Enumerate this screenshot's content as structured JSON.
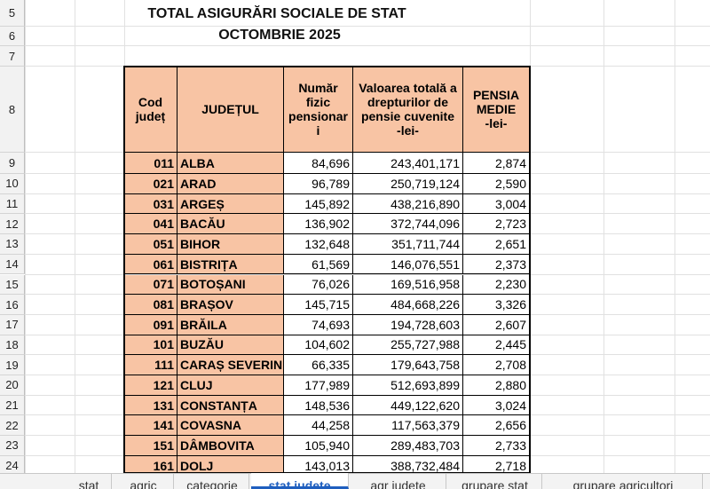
{
  "title": [
    "TOTAL ASIGURĂRI SOCIALE DE STAT",
    "OCTOMBRIE 2025"
  ],
  "row_numbers": [
    5,
    6,
    7,
    8,
    9,
    10,
    11,
    12,
    13,
    14,
    15,
    16,
    17,
    18,
    19,
    20,
    21,
    22,
    23,
    24
  ],
  "table": {
    "header": [
      [
        "Cod",
        "județ"
      ],
      [
        "JUDEȚUL"
      ],
      [
        "Număr",
        "fizic",
        "pensionar",
        "i"
      ],
      [
        "Valoarea totală a",
        "drepturilor de",
        "pensie cuvenite",
        "-lei-"
      ],
      [
        "PENSIA",
        "MEDIE",
        "-lei-"
      ]
    ],
    "rows": [
      [
        "011",
        "ALBA",
        "84,696",
        "243,401,171",
        "2,874"
      ],
      [
        "021",
        "ARAD",
        "96,789",
        "250,719,124",
        "2,590"
      ],
      [
        "031",
        "ARGEȘ",
        "145,892",
        "438,216,890",
        "3,004"
      ],
      [
        "041",
        "BACĂU",
        "136,902",
        "372,744,096",
        "2,723"
      ],
      [
        "051",
        "BIHOR",
        "132,648",
        "351,711,744",
        "2,651"
      ],
      [
        "061",
        "BISTRIȚA",
        "61,569",
        "146,076,551",
        "2,373"
      ],
      [
        "071",
        "BOTOȘANI",
        "76,026",
        "169,516,958",
        "2,230"
      ],
      [
        "081",
        "BRAȘOV",
        "145,715",
        "484,668,226",
        "3,326"
      ],
      [
        "091",
        "BRĂILA",
        "74,693",
        "194,728,603",
        "2,607"
      ],
      [
        "101",
        "BUZĂU",
        "104,602",
        "255,727,988",
        "2,445"
      ],
      [
        "111",
        "CARAȘ SEVERIN",
        "66,335",
        "179,643,758",
        "2,708"
      ],
      [
        "121",
        "CLUJ",
        "177,989",
        "512,693,899",
        "2,880"
      ],
      [
        "131",
        "CONSTANȚA",
        "148,536",
        "449,122,620",
        "3,024"
      ],
      [
        "141",
        "COVASNA",
        "44,258",
        "117,563,379",
        "2,656"
      ],
      [
        "151",
        "DÂMBOVITA",
        "105,940",
        "289,483,703",
        "2,733"
      ],
      [
        "161",
        "DOLJ",
        "143,013",
        "388,732,484",
        "2,718"
      ]
    ]
  },
  "sheet_tabs": [
    "stat",
    "agric",
    "categorie",
    "stat judete",
    "agr judete",
    "grupare stat",
    "grupare agricultori"
  ],
  "active_tab": 3
}
